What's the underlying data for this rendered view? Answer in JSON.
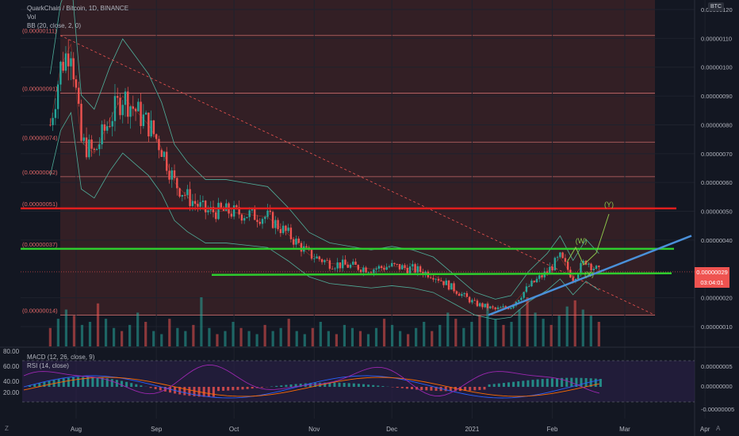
{
  "header": {
    "symbol_line": "QuarkChain / Bitcoin, 1D, BINANCE",
    "vol_label": "Vol",
    "bb_label": "BB (20, close, 2, 0)",
    "currency_badge": "BTC"
  },
  "subpanel": {
    "macd_label": "MACD (12, 26, close, 9)",
    "rsi_label": "RSI (14, close)"
  },
  "tags": {
    "last_price": "0.00000029",
    "countdown": "03:04:01"
  },
  "corners": {
    "bottom_left": "Z",
    "bottom_right": "A"
  },
  "chart_data": {
    "type": "candlestick",
    "title": "QuarkChain / Bitcoin, 1D, BINANCE",
    "price_axis": {
      "ticks": [
        "0.00000120",
        "0.00000110",
        "0.00000100",
        "0.00000090",
        "0.00000080",
        "0.00000070",
        "0.00000060",
        "0.00000050",
        "0.00000040",
        "0.00000020",
        "0.00000010"
      ],
      "range": [
        3e-08,
        1.23e-06
      ]
    },
    "time_axis": {
      "ticks": [
        "Aug",
        "Sep",
        "Oct",
        "Nov",
        "Dec",
        "2021",
        "Feb",
        "Mar",
        "Apr"
      ]
    },
    "fib_levels": [
      {
        "label": "(0.00000111)",
        "value": 1.11e-06
      },
      {
        "label": "(0.00000091)",
        "value": 9.1e-07
      },
      {
        "label": "(0.00000074)",
        "value": 7.4e-07
      },
      {
        "label": "(0.00000062)",
        "value": 6.2e-07
      },
      {
        "label": "(0.00000051)",
        "value": 5.1e-07
      },
      {
        "label": "(0.00000037)",
        "value": 3.7e-07
      },
      {
        "label": "(0.00000014)",
        "value": 1.4e-07
      }
    ],
    "price_series": [
      {
        "date": "2020-07-22",
        "close": 8e-07
      },
      {
        "date": "2020-07-26",
        "close": 1e-06
      },
      {
        "date": "2020-07-30",
        "close": 1.08e-06
      },
      {
        "date": "2020-08-03",
        "close": 7.4e-07
      },
      {
        "date": "2020-08-08",
        "close": 7e-07
      },
      {
        "date": "2020-08-14",
        "close": 8.2e-07
      },
      {
        "date": "2020-08-19",
        "close": 9e-07
      },
      {
        "date": "2020-08-24",
        "close": 8.5e-07
      },
      {
        "date": "2020-08-29",
        "close": 8e-07
      },
      {
        "date": "2020-09-03",
        "close": 7.2e-07
      },
      {
        "date": "2020-09-08",
        "close": 6e-07
      },
      {
        "date": "2020-09-13",
        "close": 5.5e-07
      },
      {
        "date": "2020-09-20",
        "close": 5e-07
      },
      {
        "date": "2020-09-28",
        "close": 5e-07
      },
      {
        "date": "2020-10-06",
        "close": 4.9e-07
      },
      {
        "date": "2020-10-14",
        "close": 4.8e-07
      },
      {
        "date": "2020-10-22",
        "close": 4.2e-07
      },
      {
        "date": "2020-10-30",
        "close": 3.5e-07
      },
      {
        "date": "2020-11-07",
        "close": 3.2e-07
      },
      {
        "date": "2020-11-15",
        "close": 3.1e-07
      },
      {
        "date": "2020-11-23",
        "close": 3e-07
      },
      {
        "date": "2020-12-01",
        "close": 3.1e-07
      },
      {
        "date": "2020-12-09",
        "close": 3e-07
      },
      {
        "date": "2020-12-17",
        "close": 2.8e-07
      },
      {
        "date": "2020-12-25",
        "close": 2.3e-07
      },
      {
        "date": "2021-01-02",
        "close": 1.8e-07
      },
      {
        "date": "2021-01-10",
        "close": 1.6e-07
      },
      {
        "date": "2021-01-16",
        "close": 1.7e-07
      },
      {
        "date": "2021-01-23",
        "close": 2.4e-07
      },
      {
        "date": "2021-01-30",
        "close": 2.9e-07
      },
      {
        "date": "2021-02-04",
        "close": 3.4e-07
      },
      {
        "date": "2021-02-09",
        "close": 2.7e-07
      },
      {
        "date": "2021-02-14",
        "close": 3.3e-07
      },
      {
        "date": "2021-02-19",
        "close": 2.9e-07
      }
    ],
    "volume_bars": [
      6,
      9,
      12,
      10,
      7,
      8,
      14,
      9,
      6,
      5,
      7,
      11,
      8,
      5,
      4,
      9,
      6,
      5,
      7,
      16,
      6,
      4,
      5,
      8,
      6,
      5,
      4,
      7,
      5,
      6,
      9,
      5,
      4,
      6,
      8,
      5,
      4,
      7,
      6,
      5,
      4,
      6,
      9,
      7,
      5,
      4,
      6,
      8,
      5,
      7,
      11,
      9,
      6,
      8,
      10,
      14,
      9,
      7,
      8,
      12,
      16,
      11,
      9,
      7,
      10,
      13,
      15,
      12,
      10,
      8
    ],
    "annotations": [
      {
        "label": "(W)",
        "date": "2021-02-16",
        "price": 3.9e-07
      },
      {
        "label": "(X)",
        "date": "2021-02-24",
        "price": 2.9e-07
      },
      {
        "label": "(Y)",
        "date": "2021-03-02",
        "price": 5.4e-07
      }
    ],
    "horizontal_lines": [
      {
        "color": "#e01e1e",
        "price": 5.1e-07
      },
      {
        "color": "#2ecc2e",
        "price": 3.7e-07
      },
      {
        "color": "#2ecc2e",
        "price": 2.85e-07
      }
    ],
    "subpanel": {
      "rsi_axis_ticks": [
        "80.00",
        "60.00",
        "40.00",
        "20.00"
      ],
      "macd_axis_ticks": [
        "0.00000005",
        "0.00000000",
        "-0.00000005"
      ]
    },
    "colors": {
      "up": "#26a69a",
      "down": "#ef5350",
      "trendline": "#4a90d9",
      "wave_path": "#8bc34a",
      "bollinger": "#4fae9a",
      "fib_fill": "#5c2a2a"
    }
  }
}
